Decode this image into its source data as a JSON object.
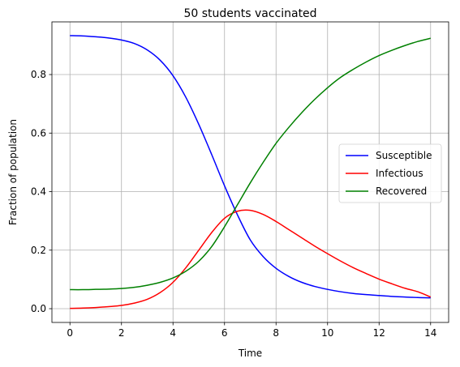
{
  "chart_data": {
    "type": "line",
    "title": "50 students vaccinated",
    "xlabel": "Time",
    "ylabel": "Fraction of population",
    "xlim": [
      -0.7,
      14.7
    ],
    "ylim": [
      -0.047,
      0.98
    ],
    "xticks": [
      0,
      2,
      4,
      6,
      8,
      10,
      12,
      14
    ],
    "yticks": [
      0.0,
      0.2,
      0.4,
      0.6,
      0.8
    ],
    "xtick_labels": [
      "0",
      "2",
      "4",
      "6",
      "8",
      "10",
      "12",
      "14"
    ],
    "ytick_labels": [
      "0.0",
      "0.2",
      "0.4",
      "0.6",
      "0.8"
    ],
    "grid": true,
    "legend_position": "center-right",
    "x": [
      0,
      0.5,
      1,
      1.5,
      2,
      2.5,
      3,
      3.5,
      4,
      4.5,
      5,
      5.5,
      6,
      6.5,
      7,
      7.5,
      8,
      8.5,
      9,
      9.5,
      10,
      10.5,
      11,
      11.5,
      12,
      12.5,
      13,
      13.5,
      14
    ],
    "series": [
      {
        "name": "Susceptible",
        "color": "#0000ff",
        "values": [
          0.933,
          0.932,
          0.929,
          0.925,
          0.918,
          0.906,
          0.884,
          0.849,
          0.796,
          0.722,
          0.63,
          0.527,
          0.42,
          0.321,
          0.235,
          0.178,
          0.138,
          0.11,
          0.09,
          0.076,
          0.066,
          0.058,
          0.052,
          0.048,
          0.045,
          0.042,
          0.04,
          0.038,
          0.037
        ]
      },
      {
        "name": "Infectious",
        "color": "#ff0000",
        "values": [
          0.001,
          0.002,
          0.004,
          0.007,
          0.011,
          0.019,
          0.032,
          0.055,
          0.09,
          0.14,
          0.2,
          0.26,
          0.309,
          0.333,
          0.336,
          0.322,
          0.298,
          0.27,
          0.242,
          0.214,
          0.188,
          0.163,
          0.14,
          0.12,
          0.101,
          0.085,
          0.07,
          0.058,
          0.04
        ]
      },
      {
        "name": "Recovered",
        "color": "#008000",
        "values": [
          0.065,
          0.065,
          0.066,
          0.067,
          0.069,
          0.073,
          0.08,
          0.09,
          0.105,
          0.128,
          0.162,
          0.212,
          0.28,
          0.355,
          0.43,
          0.5,
          0.565,
          0.62,
          0.67,
          0.715,
          0.755,
          0.79,
          0.818,
          0.843,
          0.865,
          0.883,
          0.899,
          0.913,
          0.924
        ]
      }
    ]
  }
}
